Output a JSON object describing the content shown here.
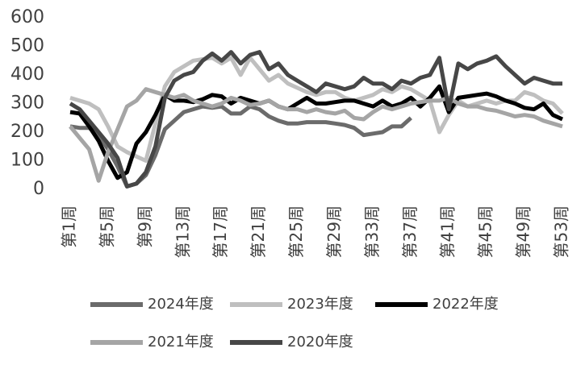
{
  "chart_data": {
    "type": "line",
    "categories": [
      "第1周",
      null,
      null,
      null,
      "第5周",
      null,
      null,
      null,
      "第9周",
      null,
      null,
      null,
      "第13周",
      null,
      null,
      null,
      "第17周",
      null,
      null,
      null,
      "第21周",
      null,
      null,
      null,
      "第25周",
      null,
      null,
      null,
      "第29周",
      null,
      null,
      null,
      "第33周",
      null,
      null,
      null,
      "第37周",
      null,
      null,
      null,
      "第41周",
      null,
      null,
      null,
      "第45周",
      null,
      null,
      null,
      "第49周",
      null,
      null,
      null,
      "第53周"
    ],
    "series": [
      {
        "name": "2024年度",
        "color": "#6b6b6b",
        "values": [
          220,
          215,
          215,
          190,
          140,
          80,
          10,
          20,
          50,
          120,
          210,
          240,
          270,
          280,
          290,
          285,
          290,
          265,
          265,
          290,
          280,
          255,
          240,
          230,
          230,
          235,
          235,
          235,
          230,
          225,
          215,
          190,
          195,
          200,
          220,
          220,
          250,
          null,
          null,
          null,
          null,
          null,
          null,
          null,
          null,
          null,
          null,
          null,
          null,
          null,
          null,
          null,
          null
        ]
      },
      {
        "name": "2023年度",
        "color": "#bfbfbf",
        "values": [
          320,
          310,
          300,
          280,
          220,
          150,
          130,
          115,
          100,
          230,
          360,
          410,
          430,
          450,
          455,
          460,
          440,
          460,
          400,
          460,
          420,
          380,
          400,
          370,
          355,
          340,
          330,
          340,
          340,
          320,
          310,
          320,
          330,
          350,
          340,
          360,
          350,
          330,
          310,
          200,
          260,
          310,
          290,
          300,
          310,
          300,
          310,
          310,
          340,
          330,
          310,
          300,
          265
        ]
      },
      {
        "name": "2022年度",
        "color": "#000000",
        "values": [
          270,
          265,
          220,
          170,
          100,
          40,
          60,
          160,
          200,
          260,
          330,
          310,
          310,
          305,
          315,
          330,
          325,
          300,
          320,
          310,
          300,
          310,
          290,
          280,
          300,
          320,
          300,
          300,
          305,
          310,
          310,
          300,
          290,
          310,
          290,
          300,
          320,
          290,
          320,
          360,
          270,
          320,
          325,
          330,
          335,
          325,
          310,
          300,
          285,
          280,
          300,
          260,
          245
        ]
      },
      {
        "name": "2021年度",
        "color": "#a5a5a5",
        "values": [
          220,
          180,
          140,
          30,
          130,
          210,
          290,
          310,
          350,
          340,
          330,
          320,
          330,
          310,
          300,
          290,
          300,
          320,
          310,
          295,
          300,
          310,
          290,
          280,
          280,
          270,
          280,
          270,
          265,
          275,
          250,
          245,
          270,
          290,
          280,
          290,
          300,
          305,
          310,
          310,
          320,
          300,
          290,
          290,
          280,
          275,
          265,
          255,
          260,
          255,
          240,
          230,
          220
        ]
      },
      {
        "name": "2020年度",
        "color": "#474747",
        "values": [
          300,
          280,
          240,
          200,
          160,
          110,
          10,
          20,
          60,
          150,
          320,
          380,
          400,
          410,
          450,
          475,
          450,
          480,
          440,
          470,
          480,
          420,
          440,
          400,
          380,
          360,
          340,
          370,
          360,
          350,
          360,
          390,
          370,
          370,
          350,
          380,
          370,
          390,
          400,
          460,
          280,
          440,
          420,
          440,
          450,
          465,
          430,
          400,
          370,
          390,
          380,
          370,
          370
        ]
      }
    ],
    "ylim": [
      0,
      600
    ],
    "yticks": [
      0,
      100,
      200,
      300,
      400,
      500,
      600
    ],
    "grid": false,
    "legend": "bottom"
  }
}
